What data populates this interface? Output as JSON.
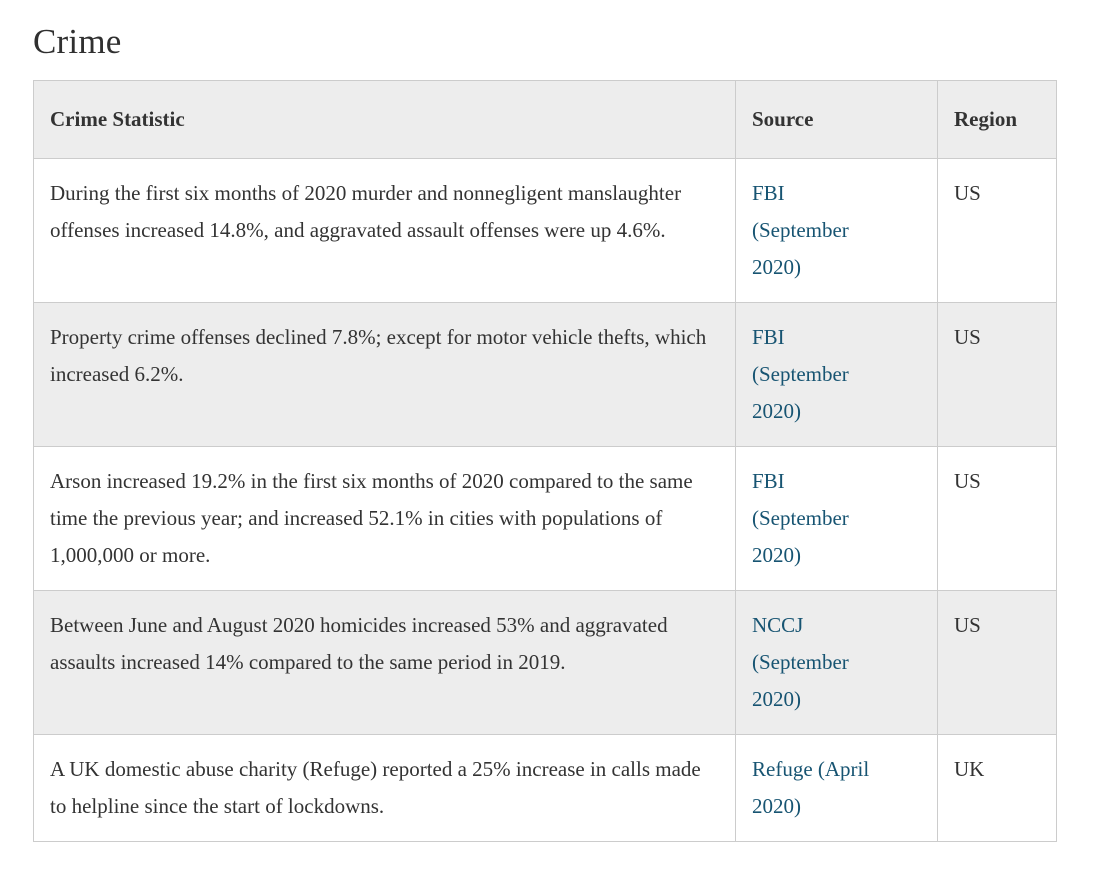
{
  "page": {
    "title": "Crime"
  },
  "table": {
    "columns": [
      "Crime Statistic",
      "Source",
      "Region"
    ],
    "rows": [
      {
        "statistic": "During the first six months of 2020 murder and nonnegligent manslaughter offenses increased 14.8%, and aggravated assault offenses were up 4.6%.",
        "source": "FBI (September 2020)",
        "region": "US"
      },
      {
        "statistic": "Property crime offenses declined 7.8%; except for motor vehicle thefts, which increased 6.2%.",
        "source": "FBI (September 2020)",
        "region": "US"
      },
      {
        "statistic": "Arson increased 19.2% in the first six months of 2020 compared to the same time the previous year; and increased 52.1% in cities with populations of 1,000,000 or more.",
        "source": "FBI (September 2020)",
        "region": "US"
      },
      {
        "statistic": "Between June and August 2020 homicides increased 53% and aggravated assaults increased 14% compared to the same period in 2019.",
        "source": "NCCJ (September 2020)",
        "region": "US"
      },
      {
        "statistic": "A UK domestic abuse charity (Refuge) reported a 25% increase in calls made to helpline since the start of lockdowns.",
        "source": "Refuge (April 2020)",
        "region": "UK"
      }
    ]
  },
  "colors": {
    "link": "#175472",
    "header_bg": "#ededed",
    "row_alt_bg": "#ededed",
    "border": "#cccccc",
    "text": "#333333"
  }
}
